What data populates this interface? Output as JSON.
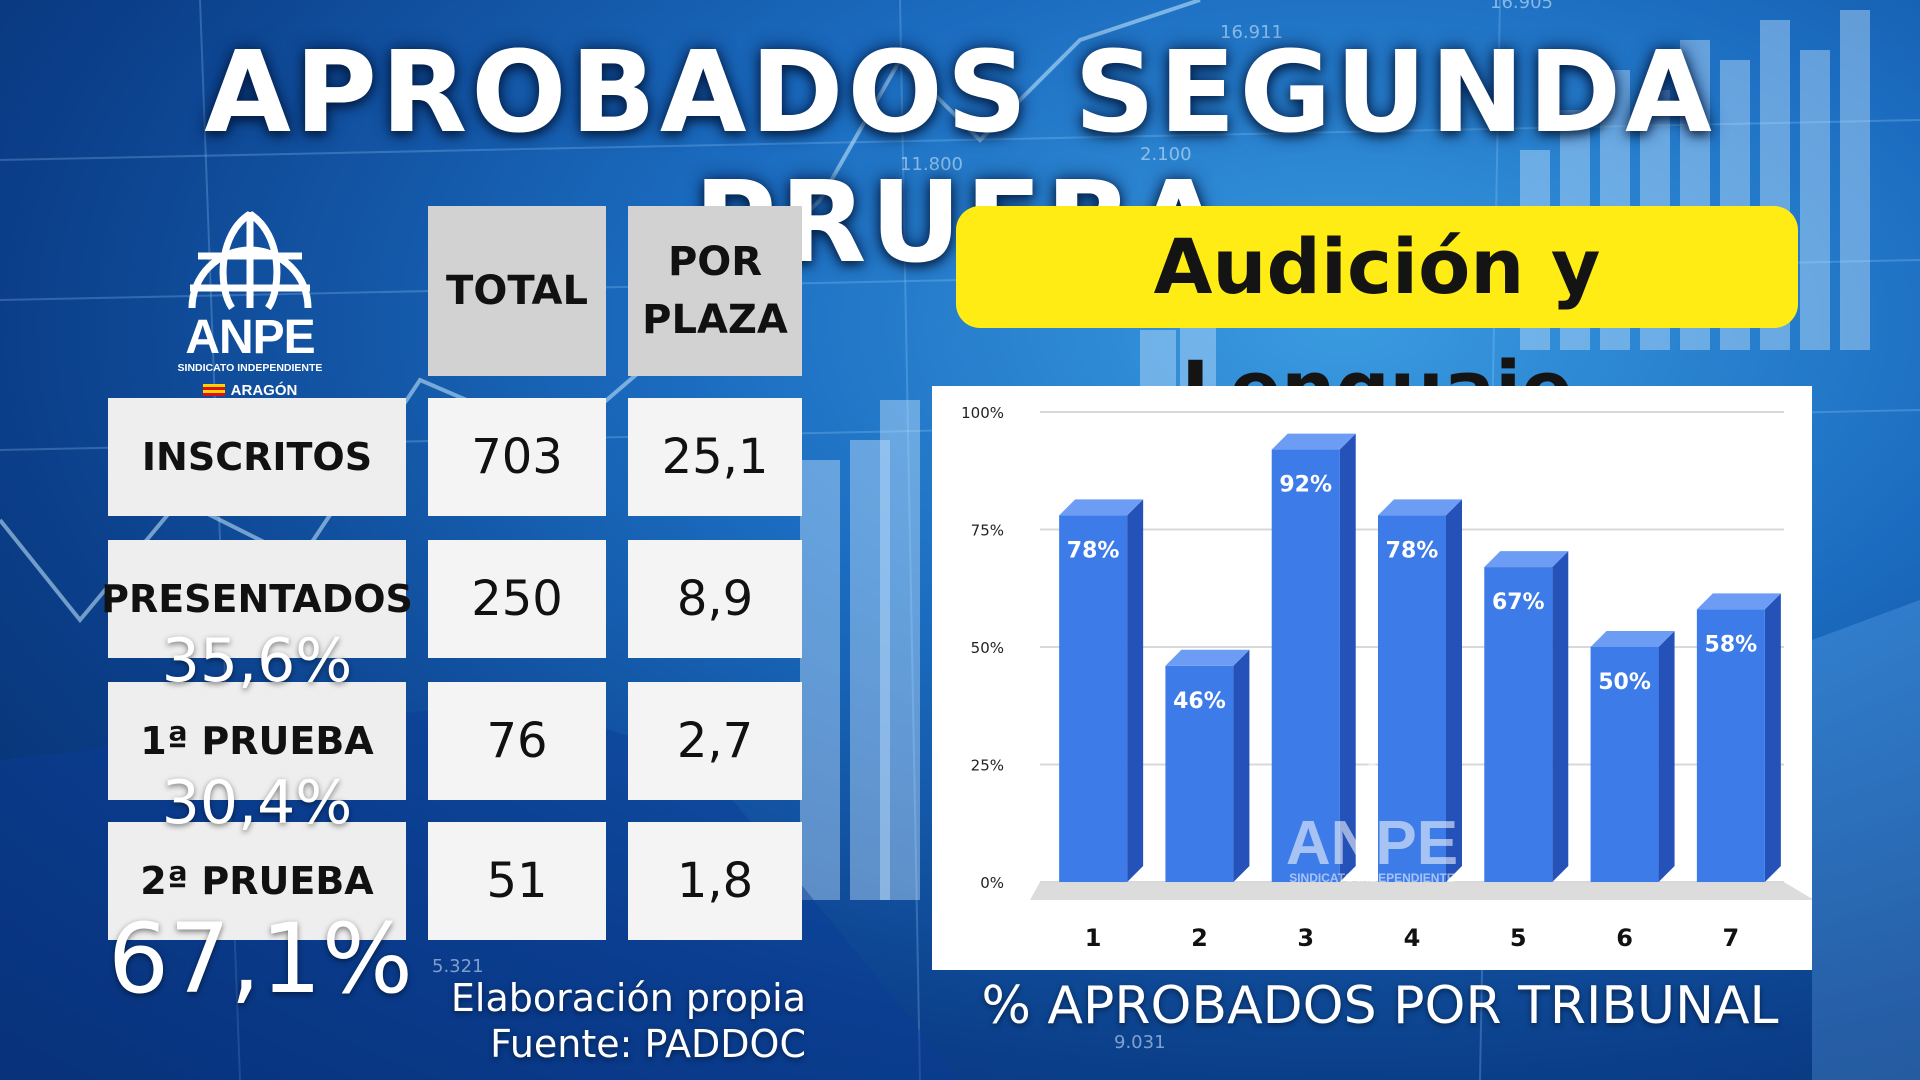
{
  "title": "APROBADOS SEGUNDA PRUEBA",
  "subtitle": "Audición y Lenguaje",
  "logo": {
    "name": "ANPE",
    "subtitle": "SINDICATO INDEPENDIENTE",
    "region": "ARAGÓN"
  },
  "table": {
    "headers": [
      "TOTAL",
      "POR PLAZA"
    ],
    "rows": [
      {
        "label": "INSCRITOS",
        "total": "703",
        "per_place": "25,1",
        "percent": ""
      },
      {
        "label": "PRESENTADOS",
        "total": "250",
        "per_place": "8,9",
        "percent": "35,6%"
      },
      {
        "label": "1ª PRUEBA",
        "total": "76",
        "per_place": "2,7",
        "percent": "30,4%"
      },
      {
        "label": "2ª PRUEBA",
        "total": "51",
        "per_place": "1,8",
        "percent": "67,1%"
      }
    ]
  },
  "source": {
    "line1": "Elaboración propia",
    "line2": "Fuente: PADDOC"
  },
  "chart_caption": "% APROBADOS POR TRIBUNAL",
  "watermark": {
    "name": "ANPE",
    "subtitle": "SINDICATO INDEPENDIENTE"
  },
  "background_numbers": [
    "16.911",
    "16.905",
    "11.800",
    "2.100",
    "5.321",
    "9.031"
  ],
  "chart_data": {
    "type": "bar",
    "categories": [
      "1",
      "2",
      "3",
      "4",
      "5",
      "6",
      "7"
    ],
    "values": [
      78,
      46,
      92,
      78,
      67,
      50,
      58
    ],
    "data_labels": [
      "78%",
      "46%",
      "92%",
      "78%",
      "67%",
      "50%",
      "58%"
    ],
    "yticks": [
      "0%",
      "25%",
      "50%",
      "75%",
      "100%"
    ],
    "ylim": [
      0,
      100
    ],
    "grid": true,
    "style": "3d",
    "bar_color": "#3d7be8",
    "title": "",
    "xlabel": "",
    "ylabel": ""
  }
}
